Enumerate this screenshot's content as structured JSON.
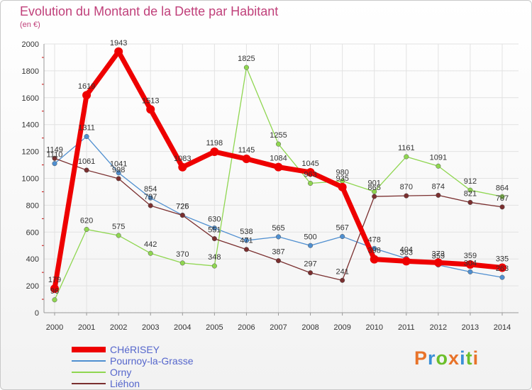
{
  "header": {
    "title": "Evolution du Montant de la Dette par Habitant",
    "unit": "(en €)"
  },
  "logo": {
    "text": "Proxiti",
    "colors": [
      "#e8732a",
      "#3a8fd6",
      "#6bbf2a",
      "#e8732a",
      "#3a8fd6",
      "#6bbf2a",
      "#e8732a"
    ]
  },
  "chart_data": {
    "type": "line",
    "title": "Evolution du Montant de la Dette par Habitant",
    "subtitle": "(en €)",
    "xlabel": "",
    "ylabel": "",
    "categories": [
      "2000",
      "2001",
      "2002",
      "2003",
      "2004",
      "2005",
      "2006",
      "2007",
      "2008",
      "2009",
      "2010",
      "2011",
      "2012",
      "2013",
      "2014"
    ],
    "y_ticks": [
      0,
      200,
      400,
      600,
      800,
      1000,
      1200,
      1400,
      1600,
      1800,
      2000
    ],
    "ylim": [
      0,
      2000
    ],
    "grid": true,
    "legend_position": "bottom-left",
    "series": [
      {
        "name": "Pournoy-la-Grasse",
        "color": "#4f8fd0",
        "values": [
          1110,
          1311,
          1041,
          854,
          726,
          630,
          538,
          565,
          500,
          567,
          478,
          404,
          355,
          304,
          263
        ],
        "labels": [
          "1110",
          "1311",
          "1041",
          "854",
          "726",
          "630",
          "538",
          "565",
          "500",
          "567",
          "478",
          "404",
          "355",
          "304",
          "263"
        ]
      },
      {
        "name": "Orny",
        "color": "#8fd650",
        "values": [
          96,
          620,
          575,
          442,
          370,
          348,
          1825,
          1255,
          963,
          980,
          901,
          1161,
          1091,
          912,
          864
        ],
        "labels": [
          "96",
          "620",
          "575",
          "442",
          "370",
          "348",
          "1825",
          "1255",
          "963",
          "980",
          "901",
          "1161",
          "1091",
          "912",
          "864"
        ]
      },
      {
        "name": "Liéhon",
        "color": "#7a2f2f",
        "values": [
          1149,
          1061,
          998,
          797,
          725,
          551,
          471,
          387,
          297,
          241,
          865,
          870,
          874,
          821,
          787
        ],
        "labels": [
          "1149",
          "1061",
          "998",
          "797",
          "725",
          "551",
          "471",
          "387",
          "297",
          "241",
          "865",
          "870",
          "874",
          "821",
          "787"
        ]
      },
      {
        "name": "CHéRISEY",
        "color": "#ee0000",
        "values": [
          179,
          1619,
          1943,
          1513,
          1083,
          1198,
          1145,
          1084,
          1045,
          935,
          398,
          383,
          373,
          359,
          335
        ],
        "labels": [
          "179",
          "1619",
          "1943",
          "1513",
          "1083",
          "1198",
          "1145",
          "1084",
          "1045",
          "935",
          "398",
          "383",
          "373",
          "359",
          "335"
        ]
      }
    ],
    "legend": [
      "CHéRISEY",
      "Pournoy-la-Grasse",
      "Orny",
      "Liéhon"
    ]
  }
}
